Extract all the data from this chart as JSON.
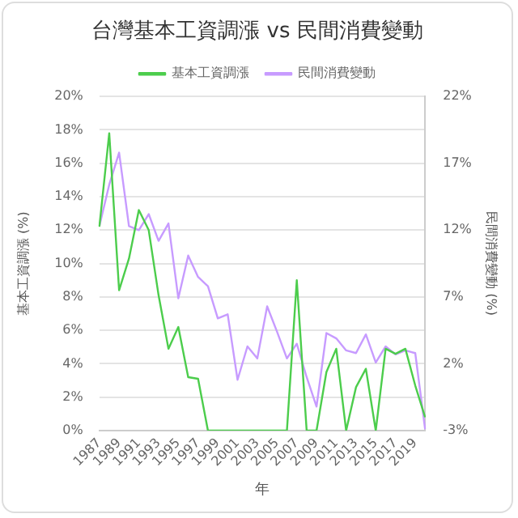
{
  "chart_data": {
    "type": "line",
    "title": "台灣基本工資調漲 vs 民間消費變動",
    "xlabel": "年",
    "ylabel": "基本工資調漲 (%)",
    "y2label": "民間消費變動 (%)",
    "categories": [
      "1987",
      null,
      "1989",
      null,
      "1991",
      null,
      "1993",
      null,
      "1995",
      null,
      "1997",
      null,
      "1999",
      null,
      "2001",
      null,
      "2003",
      null,
      "2005",
      null,
      "2007",
      null,
      "2009",
      null,
      "2011",
      null,
      "2013",
      null,
      "2015",
      null,
      "2017",
      null,
      "2019",
      null
    ],
    "series": [
      {
        "name": "基本工資調漲",
        "color": "#4ccd4c",
        "values": [
          12.2,
          17.8,
          8.4,
          10.3,
          13.2,
          12.0,
          8.1,
          4.9,
          6.2,
          3.2,
          3.1,
          0,
          0,
          0,
          0,
          0,
          0,
          0,
          0,
          0,
          9.0,
          0,
          0,
          3.5,
          4.9,
          0,
          2.6,
          3.7,
          0,
          4.9,
          4.6,
          4.9,
          2.7,
          0.8
        ]
      },
      {
        "name": "民間消費變動",
        "color": "#c79bff",
        "axis": "y2",
        "values": [
          12.3,
          15.4,
          17.8,
          12.3,
          12.0,
          13.2,
          11.2,
          12.5,
          6.9,
          10.1,
          8.5,
          7.8,
          5.4,
          5.7,
          0.8,
          3.3,
          2.4,
          6.3,
          4.4,
          2.4,
          3.5,
          1.0,
          -1.2,
          4.3,
          3.9,
          3.0,
          2.8,
          4.2,
          2.1,
          3.3,
          2.7,
          3.0,
          2.8,
          -2.9
        ]
      }
    ],
    "ylim": [
      0,
      20
    ],
    "yticks": [
      {
        "value": 0,
        "label": "0%"
      },
      {
        "value": 2,
        "label": "2%"
      },
      {
        "value": 4,
        "label": "4%"
      },
      {
        "value": 6,
        "label": "6%"
      },
      {
        "value": 8,
        "label": "8%"
      },
      {
        "value": 10,
        "label": "10%"
      },
      {
        "value": 12,
        "label": "12%"
      },
      {
        "value": 14,
        "label": "14%"
      },
      {
        "value": 16,
        "label": "16%"
      },
      {
        "value": 18,
        "label": "18%"
      },
      {
        "value": 20,
        "label": "20%"
      }
    ],
    "y2lim": [
      -3,
      22
    ],
    "y2ticks": [
      {
        "value": -3,
        "label": "-3%"
      },
      {
        "value": 2,
        "label": "2%"
      },
      {
        "value": 7,
        "label": "7%"
      },
      {
        "value": 12,
        "label": "12%"
      },
      {
        "value": 17,
        "label": "17%"
      },
      {
        "value": 22,
        "label": "22%"
      }
    ],
    "grid": "y",
    "legend": "top",
    "marker": "none",
    "line_style": "solid"
  }
}
